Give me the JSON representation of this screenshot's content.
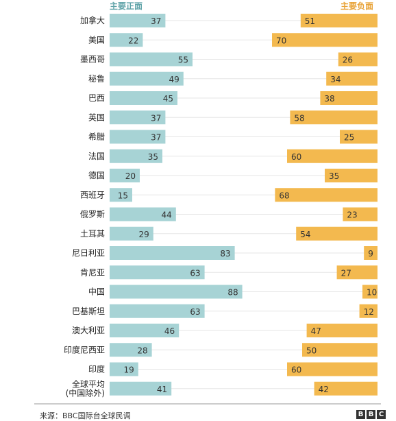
{
  "source": "来源：BBC国际台全球民调",
  "logo": [
    "B",
    "B",
    "C"
  ],
  "colors": {
    "positive": "#a7d3d5",
    "negative": "#f3b94f",
    "positive_text": "#5fa3a8",
    "negative_text": "#e8a236"
  },
  "chart_data": {
    "type": "bar",
    "series": [
      {
        "name": "主要正面",
        "values": [
          37,
          22,
          55,
          49,
          45,
          37,
          37,
          35,
          20,
          15,
          44,
          29,
          83,
          63,
          88,
          63,
          46,
          28,
          19,
          41
        ]
      },
      {
        "name": "主要负面",
        "values": [
          51,
          70,
          26,
          34,
          38,
          58,
          25,
          60,
          35,
          68,
          23,
          54,
          9,
          27,
          10,
          12,
          47,
          50,
          60,
          42
        ]
      }
    ],
    "categories": [
      "加拿大",
      "美国",
      "墨西哥",
      "秘鲁",
      "巴西",
      "英国",
      "希腊",
      "法国",
      "德国",
      "西班牙",
      "俄罗斯",
      "土耳其",
      "尼日利亚",
      "肯尼亚",
      "中国",
      "巴基斯坦",
      "澳大利亚",
      "印度尼西亚",
      "印度",
      "全球平均\n(中国除外)"
    ],
    "layout": "diverging bars: positive grows right from left axis, negative grows left from right axis"
  }
}
